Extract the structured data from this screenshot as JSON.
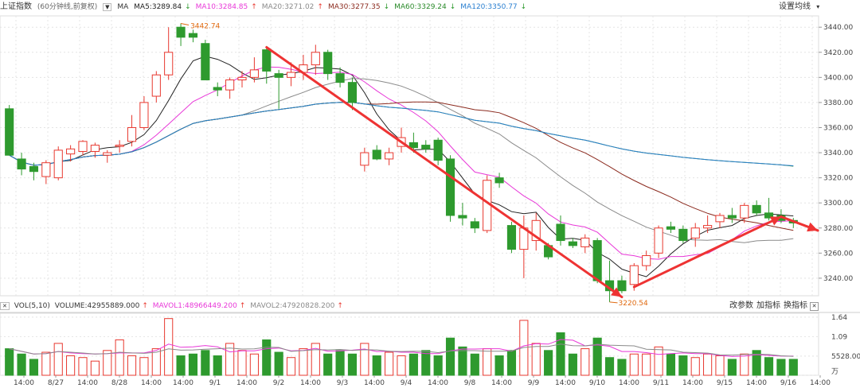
{
  "header": {
    "index_name": "上证指数",
    "subtitle": "(60分钟线,前复权)",
    "ma_label": "MA",
    "ma": [
      {
        "label": "MA5:3289.84",
        "arrow": "↓",
        "color": "#222222"
      },
      {
        "label": "MA10:3284.85",
        "arrow": "↑",
        "color": "#e838d8"
      },
      {
        "label": "MA20:3271.02",
        "arrow": "↑",
        "color": "#8a8a8a"
      },
      {
        "label": "MA30:3277.35",
        "arrow": "↓",
        "color": "#8b2a1e"
      },
      {
        "label": "MA60:3329.24",
        "arrow": "↓",
        "color": "#2a8a2a"
      },
      {
        "label": "MA120:3350.77",
        "arrow": "↓",
        "color": "#2a7fd0"
      }
    ],
    "settings": "设置均线"
  },
  "volume_header": {
    "label": "VOL(5,10)",
    "volume": "VOLUME:42955889.000",
    "volume_arrow": "↑",
    "mavol1": "MAVOL1:48966449.200",
    "mavol1_arrow": "↑",
    "mavol2": "MAVOL2:47920828.200",
    "mavol2_arrow": "↑",
    "tools": [
      "改参数",
      "加指标",
      "换指标"
    ]
  },
  "colors": {
    "up": "#e8382f",
    "down": "#2e9a2e",
    "arrow": "#ee3333",
    "annotation": "#e06a10",
    "grid": "#e4e4e4"
  },
  "chart_data": {
    "type": "candlestick",
    "price_axis": {
      "ticks": [
        3240,
        3260,
        3280,
        3300,
        3320,
        3340,
        3360,
        3380,
        3400,
        3420,
        3440
      ],
      "tick_labels": [
        "3240.00",
        "3260.00",
        "3280.00",
        "3300.00",
        "3320.00",
        "3340.00",
        "3360.00",
        "3380.00",
        "3400.00",
        "3420.00",
        "3440.00"
      ],
      "ylim": [
        3226,
        3449
      ]
    },
    "volume_axis": {
      "tick_labels": [
        "1.64",
        "1.09",
        "5528.00",
        "万"
      ]
    },
    "x_labels": [
      "14:00",
      "8/27",
      "14:00",
      "8/28",
      "14:00",
      "14:00",
      "9/1",
      "14:00",
      "9/2",
      "14:00",
      "9/3",
      "14:00",
      "9/4",
      "14:00",
      "9/8",
      "14:00",
      "9/9",
      "14:00",
      "9/10",
      "14:00",
      "9/11",
      "14:00",
      "9/15",
      "14:00",
      "9/16",
      "14:00"
    ],
    "annotations": {
      "high": "3442.74",
      "low": "3220.54"
    },
    "candles": [
      {
        "o": 3375,
        "h": 3378,
        "l": 3338,
        "c": 3338,
        "v": 0.75
      },
      {
        "o": 3335,
        "h": 3340,
        "l": 3322,
        "c": 3327,
        "v": 0.6
      },
      {
        "o": 3329,
        "h": 3332,
        "l": 3318,
        "c": 3325,
        "v": 0.45
      },
      {
        "o": 3321,
        "h": 3334,
        "l": 3315,
        "c": 3332,
        "v": 0.65
      },
      {
        "o": 3320,
        "h": 3345,
        "l": 3318,
        "c": 3342,
        "v": 0.9
      },
      {
        "o": 3339,
        "h": 3346,
        "l": 3333,
        "c": 3343,
        "v": 0.55
      },
      {
        "o": 3341,
        "h": 3350,
        "l": 3338,
        "c": 3349,
        "v": 0.5
      },
      {
        "o": 3341,
        "h": 3348,
        "l": 3336,
        "c": 3346,
        "v": 0.4
      },
      {
        "o": 3338,
        "h": 3342,
        "l": 3332,
        "c": 3340,
        "v": 0.7
      },
      {
        "o": 3345,
        "h": 3350,
        "l": 3340,
        "c": 3346,
        "v": 1.0
      },
      {
        "o": 3349,
        "h": 3370,
        "l": 3345,
        "c": 3360,
        "v": 0.55
      },
      {
        "o": 3360,
        "h": 3385,
        "l": 3358,
        "c": 3380,
        "v": 0.5
      },
      {
        "o": 3385,
        "h": 3405,
        "l": 3380,
        "c": 3402,
        "v": 0.75
      },
      {
        "o": 3402,
        "h": 3440,
        "l": 3398,
        "c": 3420,
        "v": 1.6
      },
      {
        "o": 3440,
        "h": 3443,
        "l": 3425,
        "c": 3432,
        "v": 0.55
      },
      {
        "o": 3435,
        "h": 3438,
        "l": 3428,
        "c": 3432,
        "v": 0.6
      },
      {
        "o": 3427,
        "h": 3430,
        "l": 3398,
        "c": 3398,
        "v": 0.7
      },
      {
        "o": 3392,
        "h": 3396,
        "l": 3385,
        "c": 3390,
        "v": 0.55
      },
      {
        "o": 3390,
        "h": 3400,
        "l": 3383,
        "c": 3398,
        "v": 0.9
      },
      {
        "o": 3398,
        "h": 3405,
        "l": 3392,
        "c": 3400,
        "v": 0.7
      },
      {
        "o": 3400,
        "h": 3416,
        "l": 3396,
        "c": 3406,
        "v": 0.6
      },
      {
        "o": 3422,
        "h": 3425,
        "l": 3395,
        "c": 3405,
        "v": 1.0
      },
      {
        "o": 3403,
        "h": 3406,
        "l": 3375,
        "c": 3400,
        "v": 0.65
      },
      {
        "o": 3400,
        "h": 3412,
        "l": 3393,
        "c": 3404,
        "v": 0.5
      },
      {
        "o": 3404,
        "h": 3418,
        "l": 3398,
        "c": 3410,
        "v": 0.75
      },
      {
        "o": 3410,
        "h": 3426,
        "l": 3402,
        "c": 3420,
        "v": 0.9
      },
      {
        "o": 3420,
        "h": 3422,
        "l": 3398,
        "c": 3403,
        "v": 0.6
      },
      {
        "o": 3403,
        "h": 3408,
        "l": 3392,
        "c": 3396,
        "v": 0.7
      },
      {
        "o": 3396,
        "h": 3400,
        "l": 3374,
        "c": 3380,
        "v": 0.6
      },
      {
        "o": 3330,
        "h": 3344,
        "l": 3325,
        "c": 3340,
        "v": 0.9
      },
      {
        "o": 3342,
        "h": 3346,
        "l": 3334,
        "c": 3335,
        "v": 0.55
      },
      {
        "o": 3335,
        "h": 3344,
        "l": 3330,
        "c": 3340,
        "v": 0.65
      },
      {
        "o": 3345,
        "h": 3360,
        "l": 3340,
        "c": 3352,
        "v": 0.55
      },
      {
        "o": 3348,
        "h": 3356,
        "l": 3340,
        "c": 3344,
        "v": 0.6
      },
      {
        "o": 3346,
        "h": 3350,
        "l": 3340,
        "c": 3343,
        "v": 0.7
      },
      {
        "o": 3350,
        "h": 3352,
        "l": 3330,
        "c": 3334,
        "v": 0.55
      },
      {
        "o": 3335,
        "h": 3338,
        "l": 3285,
        "c": 3290,
        "v": 1.05
      },
      {
        "o": 3290,
        "h": 3300,
        "l": 3282,
        "c": 3288,
        "v": 0.8
      },
      {
        "o": 3285,
        "h": 3288,
        "l": 3276,
        "c": 3280,
        "v": 0.6
      },
      {
        "o": 3278,
        "h": 3322,
        "l": 3276,
        "c": 3318,
        "v": 0.75
      },
      {
        "o": 3320,
        "h": 3324,
        "l": 3312,
        "c": 3316,
        "v": 0.55
      },
      {
        "o": 3282,
        "h": 3285,
        "l": 3260,
        "c": 3263,
        "v": 0.7
      },
      {
        "o": 3263,
        "h": 3290,
        "l": 3240,
        "c": 3280,
        "v": 1.55
      },
      {
        "o": 3270,
        "h": 3292,
        "l": 3262,
        "c": 3286,
        "v": 0.9
      },
      {
        "o": 3266,
        "h": 3268,
        "l": 3255,
        "c": 3257,
        "v": 0.7
      },
      {
        "o": 3283,
        "h": 3290,
        "l": 3266,
        "c": 3270,
        "v": 1.2
      },
      {
        "o": 3269,
        "h": 3272,
        "l": 3264,
        "c": 3266,
        "v": 0.6
      },
      {
        "o": 3265,
        "h": 3275,
        "l": 3260,
        "c": 3272,
        "v": 0.75
      },
      {
        "o": 3270,
        "h": 3272,
        "l": 3236,
        "c": 3238,
        "v": 1.05
      },
      {
        "o": 3238,
        "h": 3254,
        "l": 3221,
        "c": 3230,
        "v": 0.5
      },
      {
        "o": 3238,
        "h": 3242,
        "l": 3228,
        "c": 3230,
        "v": 0.45
      },
      {
        "o": 3235,
        "h": 3252,
        "l": 3230,
        "c": 3250,
        "v": 0.6
      },
      {
        "o": 3250,
        "h": 3262,
        "l": 3246,
        "c": 3258,
        "v": 0.6
      },
      {
        "o": 3260,
        "h": 3282,
        "l": 3256,
        "c": 3280,
        "v": 0.8
      },
      {
        "o": 3281,
        "h": 3285,
        "l": 3276,
        "c": 3279,
        "v": 0.6
      },
      {
        "o": 3279,
        "h": 3282,
        "l": 3268,
        "c": 3270,
        "v": 0.55
      },
      {
        "o": 3272,
        "h": 3284,
        "l": 3265,
        "c": 3280,
        "v": 0.5
      },
      {
        "o": 3280,
        "h": 3290,
        "l": 3276,
        "c": 3282,
        "v": 0.6
      },
      {
        "o": 3285,
        "h": 3292,
        "l": 3280,
        "c": 3290,
        "v": 0.55
      },
      {
        "o": 3290,
        "h": 3296,
        "l": 3284,
        "c": 3288,
        "v": 0.45
      },
      {
        "o": 3288,
        "h": 3300,
        "l": 3284,
        "c": 3298,
        "v": 0.6
      },
      {
        "o": 3298,
        "h": 3302,
        "l": 3290,
        "c": 3292,
        "v": 0.7
      },
      {
        "o": 3292,
        "h": 3304,
        "l": 3286,
        "c": 3288,
        "v": 0.5
      },
      {
        "o": 3290,
        "h": 3295,
        "l": 3284,
        "c": 3286,
        "v": 0.45
      },
      {
        "o": 3286,
        "h": 3288,
        "l": 3280,
        "c": 3284,
        "v": 0.45
      }
    ],
    "arrows": [
      {
        "from": [
          21,
          3424
        ],
        "to": [
          50,
          3225
        ]
      },
      {
        "from": [
          51,
          3233
        ],
        "to": [
          63,
          3289
        ]
      },
      {
        "from": [
          63,
          3289
        ],
        "to": [
          66,
          3278
        ]
      }
    ]
  }
}
